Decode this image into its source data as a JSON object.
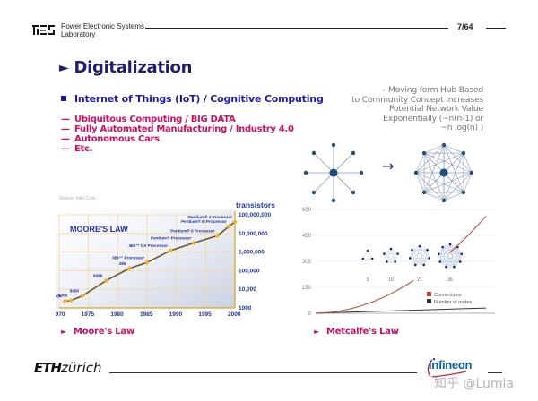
{
  "header": {
    "lab_name_line1": "Power Electronic Systems",
    "lab_name_line2": "Laboratory",
    "page_number": "7/64"
  },
  "title": {
    "marker": "►",
    "text": "Digitalization"
  },
  "main_bullet": "Internet of Things (IoT)  / Cognitive Computing",
  "sub_items": [
    {
      "dash": "—",
      "text": "Ubiquitous Computing / BIG DATA"
    },
    {
      "dash": "—",
      "text": "Fully Automated Manufacturing / Industry 4.0"
    },
    {
      "dash": "—",
      "text": "Autonomous Cars"
    },
    {
      "dash": "—",
      "text": "Etc."
    }
  ],
  "right_note": {
    "line1": "–  Moving form Hub-Based",
    "line2": "to Community Concept Increases",
    "line3": "Potential Network Value",
    "line4": "Exponentially (~n(n-1)  or",
    "line5": "~n log(n) )"
  },
  "diagram": {
    "arrow": "→"
  },
  "chart_data": [
    {
      "type": "line",
      "title": "MOORE'S LAW",
      "source": "Source: Intel Corp.",
      "xlabel": "",
      "ylabel": "transistors",
      "yscale": "log",
      "x_ticks": [
        "1970",
        "1975",
        "1980",
        "1985",
        "1990",
        "1995",
        "2000"
      ],
      "y_ticks": [
        "1000",
        "10,000",
        "100,000",
        "1,000,000",
        "10,000,000",
        "100,000,000"
      ],
      "points": [
        {
          "label": "4004",
          "year": 1971,
          "transistors": 2300
        },
        {
          "label": "8008",
          "year": 1972,
          "transistors": 2500
        },
        {
          "label": "8080",
          "year": 1974,
          "transistors": 4500
        },
        {
          "label": "8086",
          "year": 1978,
          "transistors": 29000
        },
        {
          "label": "286",
          "year": 1982,
          "transistors": 134000
        },
        {
          "label": "386™ Processor",
          "year": 1985,
          "transistors": 275000
        },
        {
          "label": "486™ DX Processor",
          "year": 1989,
          "transistors": 1200000
        },
        {
          "label": "Pentium® Processor",
          "year": 1993,
          "transistors": 3100000
        },
        {
          "label": "Pentium® II Processor",
          "year": 1997,
          "transistors": 7500000
        },
        {
          "label": "Pentium® III Processor",
          "year": 1999,
          "transistors": 24000000
        },
        {
          "label": "Pentium® 4 Processor",
          "year": 2000,
          "transistors": 42000000
        }
      ]
    },
    {
      "type": "line",
      "title": "",
      "xlabel": "",
      "ylabel": "",
      "ylim": [
        0,
        600
      ],
      "y_ticks": [
        "0",
        "150",
        "300",
        "450",
        "600"
      ],
      "grid": true,
      "legend_position": "lower-right",
      "series": [
        {
          "name": "Connections",
          "color": "#d43a2a",
          "x": [
            1,
            2,
            3,
            4,
            5,
            6,
            7,
            8,
            9,
            10,
            11,
            12,
            13,
            14,
            15,
            16,
            17,
            18,
            19,
            20,
            21,
            22,
            23,
            24,
            25,
            26,
            27,
            28,
            29,
            30,
            31,
            32,
            33,
            34
          ],
          "values": [
            0,
            1,
            3,
            6,
            10,
            15,
            21,
            28,
            36,
            45,
            55,
            66,
            78,
            91,
            105,
            120,
            136,
            153,
            171,
            190,
            210,
            231,
            253,
            276,
            300,
            325,
            351,
            378,
            406,
            435,
            465,
            496,
            528,
            561
          ]
        },
        {
          "name": "Number of nodes",
          "color": "#333333",
          "x": [
            1,
            34
          ],
          "values": [
            1,
            34
          ]
        }
      ],
      "inset_labels": [
        "3",
        "10",
        "21",
        "36"
      ]
    }
  ],
  "captions": {
    "moore": {
      "marker": "►",
      "text": "Moore's Law"
    },
    "metcalfe": {
      "marker": "►",
      "text": "Metcalfe's Law"
    }
  },
  "footer": {
    "eth_bold": "ETH",
    "eth_rest": "zürich",
    "infineon": "infineon",
    "watermark": "知乎 @Lumia"
  },
  "colors": {
    "title": "#1e1e6e",
    "bullet": "#1c1ca8",
    "accent": "#d01060",
    "note": "#777777"
  }
}
